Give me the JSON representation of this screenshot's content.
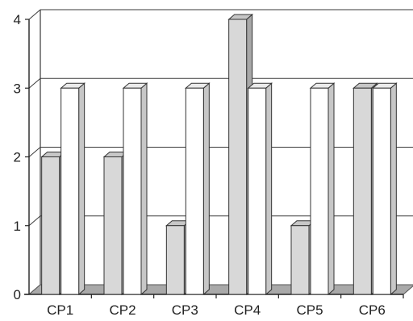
{
  "chart_data": {
    "type": "bar",
    "categories": [
      "CP1",
      "CP2",
      "CP3",
      "CP4",
      "CP5",
      "CP6"
    ],
    "series": [
      {
        "values": [
          2,
          2,
          1,
          4,
          1,
          3
        ],
        "color": "#d8d8d8"
      },
      {
        "values": [
          3,
          3,
          3,
          3,
          3,
          3
        ],
        "color": "#ffffff"
      }
    ],
    "ylim": [
      0,
      4
    ],
    "yticks": [
      0,
      1,
      2,
      3,
      4
    ],
    "grid": true,
    "style": "3d"
  }
}
